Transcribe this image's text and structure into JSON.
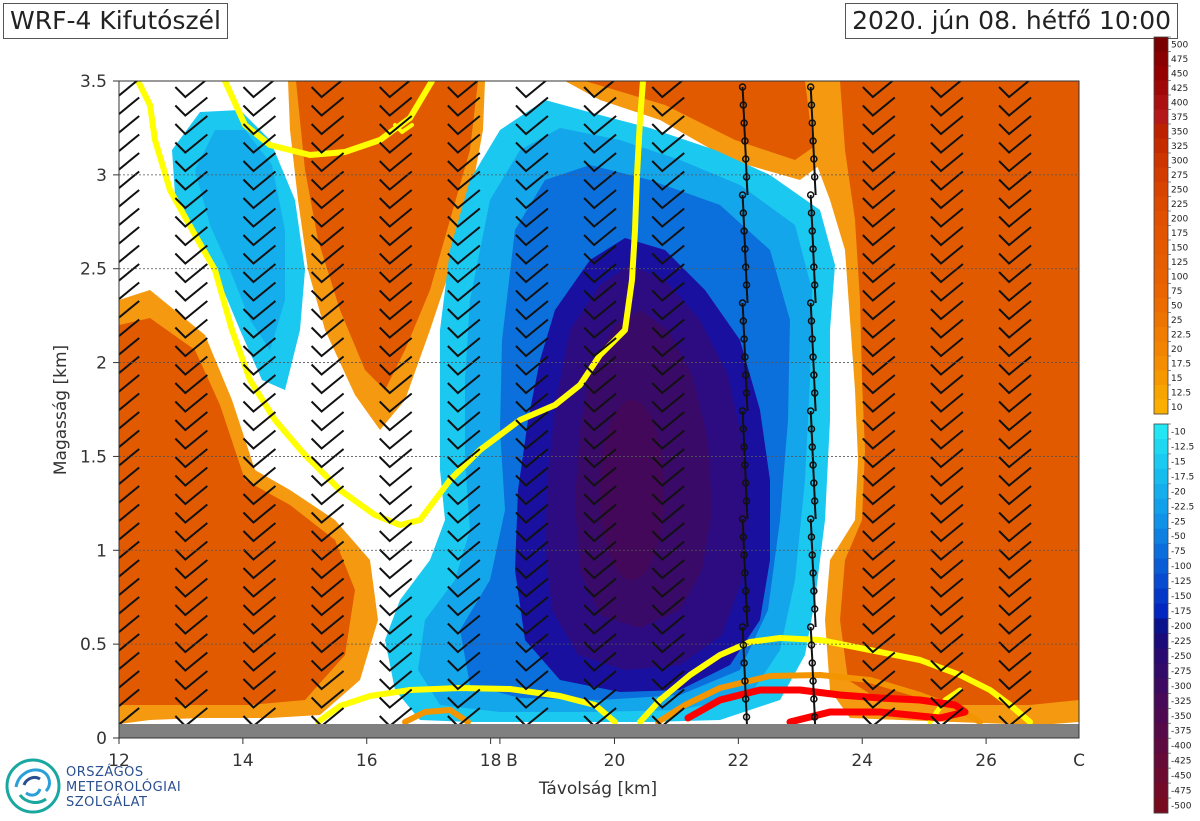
{
  "header": {
    "title": "WRF-4 Kifutószél",
    "datetime": "2020. jún 08. hétfő 10:00"
  },
  "logo": {
    "lines": [
      "ORSZÁGOS",
      "METEOROLÓGIAI",
      "SZOLGÁLAT"
    ],
    "icon": "omsz-swirl-icon"
  },
  "chart_data": {
    "type": "heatmap",
    "title": "WRF-4 Kifutószél",
    "xlabel": "Távolság [km]",
    "ylabel": "Magasság [km]",
    "xlim": [
      12,
      27.5
    ],
    "ylim": [
      0,
      3.5
    ],
    "xticks": [
      12,
      14,
      16,
      18,
      20,
      22,
      24,
      26
    ],
    "yticks": [
      0,
      0.5,
      1,
      1.5,
      2,
      2.5,
      3,
      3.5
    ],
    "ytick_labels": [
      "0",
      "0.5",
      "1",
      "1.5",
      "2",
      "2.5",
      "3",
      "3.5"
    ],
    "point_markers": [
      {
        "x": 18.15,
        "label": "B"
      },
      {
        "x": 27.5,
        "label": "C"
      }
    ],
    "grid": "horizontal dotted",
    "positive_colorbar": {
      "labels": [
        "500",
        "475",
        "450",
        "425",
        "400",
        "375",
        "350",
        "325",
        "300",
        "275",
        "250",
        "225",
        "200",
        "175",
        "150",
        "125",
        "100",
        "75",
        "50",
        "25",
        "22.5",
        "20",
        "17.5",
        "15",
        "12.5",
        "10"
      ],
      "colors": [
        "#7a0000",
        "#880000",
        "#940000",
        "#a00808",
        "#aa1010",
        "#b41818",
        "#bc2200",
        "#c42c00",
        "#cc3400",
        "#d23c00",
        "#d84400",
        "#dc4a00",
        "#e05000",
        "#e25400",
        "#e45800",
        "#e65c00",
        "#e86000",
        "#ea6400",
        "#ec6c00",
        "#ee7400",
        "#f07c00",
        "#f28400",
        "#f48e00",
        "#f69800",
        "#f8a400",
        "#faae00"
      ]
    },
    "negative_colorbar": {
      "labels": [
        "-10",
        "-12.5",
        "-15",
        "-17.5",
        "-20",
        "-22.5",
        "-25",
        "-50",
        "-75",
        "-100",
        "-125",
        "-150",
        "-175",
        "-200",
        "-225",
        "-250",
        "-275",
        "-300",
        "-325",
        "-350",
        "-375",
        "-400",
        "-425",
        "-450",
        "-475",
        "-500"
      ],
      "colors": [
        "#22e6f4",
        "#1ed8f2",
        "#1acaf0",
        "#16bcee",
        "#14aeec",
        "#12a0ea",
        "#1092e8",
        "#0e80e2",
        "#0c6edc",
        "#0a5cd6",
        "#084ad0",
        "#0638c8",
        "#0426c0",
        "#0a128c",
        "#1a0a7a",
        "#280a70",
        "#320a68",
        "#3c0a60",
        "#460a58",
        "#4e0a50",
        "#560a48",
        "#5e0a40",
        "#660a38",
        "#6c0a30",
        "#720a28",
        "#780a20"
      ]
    },
    "shaded_regions": [
      {
        "sign": "positive",
        "x_range": [
          12,
          14.8
        ],
        "y_range": [
          0.05,
          2.3
        ],
        "peak": 100
      },
      {
        "sign": "negative",
        "x_range": [
          12.9,
          14.4
        ],
        "y_range": [
          1.85,
          3.35
        ],
        "peak": -22.5
      },
      {
        "sign": "positive",
        "x_range": [
          14.5,
          17.5
        ],
        "y_range": [
          0.1,
          1.3
        ],
        "peak": 100
      },
      {
        "sign": "positive",
        "x_range": [
          14.8,
          17.6
        ],
        "y_range": [
          1.7,
          3.5
        ],
        "peak": 100
      },
      {
        "sign": "positive",
        "x_range": [
          16.4,
          22.6
        ],
        "y_range": [
          3.1,
          3.5
        ],
        "peak": 75
      },
      {
        "sign": "negative",
        "x_range": [
          16,
          23.3
        ],
        "y_range": [
          0.08,
          3.3
        ],
        "peak": -125
      },
      {
        "sign": "negative",
        "x_range": [
          18,
          21.9
        ],
        "y_range": [
          0.25,
          2.7
        ],
        "peak": -475
      },
      {
        "sign": "positive",
        "x_range": [
          22.3,
          27.5
        ],
        "y_range": [
          0.1,
          3.5
        ],
        "peak": 100
      }
    ],
    "contours": [
      {
        "color": "yellow",
        "description": "left contour loop"
      },
      {
        "color": "yellow",
        "description": "upper-left arc"
      },
      {
        "color": "yellow",
        "description": "central contour"
      },
      {
        "color": "yellow",
        "description": "bottom arcs"
      },
      {
        "color": "orange",
        "description": "bottom arcs"
      },
      {
        "color": "red",
        "description": "bottom right loop"
      }
    ],
    "barb_columns_x": [
      12.1,
      13.2,
      14.3,
      15.4,
      16.5,
      17.6,
      18.7,
      19.8,
      20.9,
      22.1,
      23.2,
      24.3,
      25.4,
      26.5
    ]
  },
  "colors": {
    "axis": "#333333",
    "tick_text": "#333333",
    "ground": "#808080",
    "contour_yellow": "#ffff00",
    "contour_orange": "#f39500",
    "contour_red": "#ff0000"
  }
}
